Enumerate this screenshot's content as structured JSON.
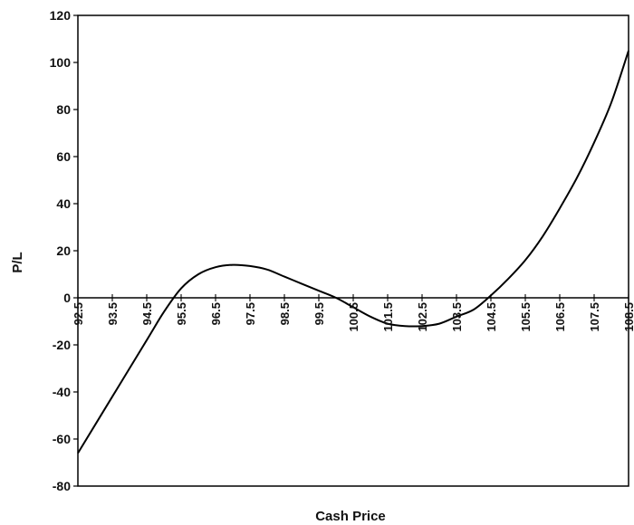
{
  "chart_data": {
    "type": "line",
    "title": "",
    "xlabel": "Cash Price",
    "ylabel": "P/L",
    "xlim": [
      92.5,
      108.5
    ],
    "ylim": [
      -80,
      120
    ],
    "yticks": [
      -80,
      -60,
      -40,
      -20,
      0,
      20,
      40,
      60,
      80,
      100,
      120
    ],
    "xticks": [
      92.5,
      93.5,
      94.5,
      95.5,
      96.5,
      97.5,
      98.5,
      99.5,
      100.5,
      101.5,
      102.5,
      103.5,
      104.5,
      105.5,
      106.5,
      107.5,
      108.5
    ],
    "xtick_labels": [
      "92.5",
      "93.5",
      "94.5",
      "95.5",
      "96.5",
      "97.5",
      "98.5",
      "99.5",
      "100.5",
      "101.5",
      "102.5",
      "103.5",
      "104.5",
      "105.5",
      "106.5",
      "107.5",
      "108.5"
    ],
    "grid": false,
    "legend": "none",
    "line_color": "#000000",
    "series": [
      {
        "x": [
          92.5,
          93.5,
          94.5,
          95.0,
          95.5,
          96.0,
          96.5,
          97.0,
          97.5,
          98.0,
          98.5,
          99.0,
          99.5,
          100.0,
          100.5,
          101.0,
          101.5,
          102.0,
          102.5,
          103.0,
          103.5,
          104.0,
          104.5,
          105.0,
          105.5,
          106.0,
          106.5,
          107.0,
          107.5,
          108.0,
          108.5
        ],
        "y": [
          -66,
          -42,
          -18,
          -6,
          4,
          10,
          13,
          14,
          13.5,
          12,
          9,
          6,
          3,
          0,
          -4,
          -8,
          -11,
          -12,
          -12,
          -11,
          -8,
          -5,
          1,
          8,
          16,
          26,
          38,
          51,
          66,
          83,
          105
        ]
      }
    ]
  }
}
